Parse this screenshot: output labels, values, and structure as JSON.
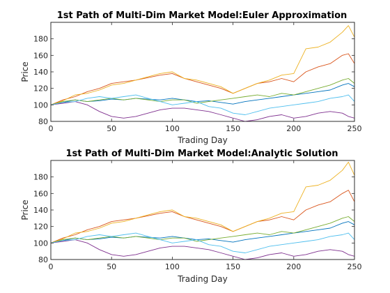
{
  "chart_data": [
    {
      "type": "line",
      "title": "1st Path of Multi-Dim Market Model:Euler Approximation",
      "xlabel": "Trading Day",
      "ylabel": "Price",
      "xlim": [
        0,
        250
      ],
      "ylim": [
        80,
        200
      ],
      "xticks": [
        0,
        50,
        100,
        150,
        200,
        250
      ],
      "yticks": [
        80,
        100,
        120,
        140,
        160,
        180
      ],
      "grid": false,
      "x": [
        0,
        10,
        20,
        30,
        40,
        50,
        60,
        70,
        80,
        90,
        100,
        110,
        120,
        130,
        140,
        150,
        160,
        170,
        180,
        190,
        200,
        210,
        220,
        230,
        240,
        245,
        250
      ],
      "series": [
        {
          "color": "#0072bd",
          "values": [
            100,
            103,
            106,
            104,
            105,
            107,
            106,
            108,
            107,
            106,
            108,
            106,
            104,
            105,
            103,
            101,
            104,
            106,
            108,
            110,
            112,
            114,
            116,
            118,
            124,
            126,
            122
          ]
        },
        {
          "color": "#d95319",
          "values": [
            100,
            106,
            110,
            116,
            120,
            126,
            128,
            130,
            133,
            136,
            138,
            132,
            128,
            124,
            120,
            114,
            120,
            126,
            128,
            132,
            128,
            140,
            146,
            150,
            160,
            162,
            150
          ]
        },
        {
          "color": "#edb120",
          "values": [
            100,
            105,
            112,
            114,
            118,
            124,
            126,
            130,
            134,
            138,
            140,
            132,
            130,
            126,
            122,
            114,
            120,
            126,
            130,
            136,
            138,
            168,
            170,
            176,
            188,
            196,
            182
          ]
        },
        {
          "color": "#7e2f8e",
          "values": [
            100,
            102,
            104,
            100,
            92,
            86,
            84,
            86,
            90,
            94,
            96,
            96,
            94,
            92,
            88,
            84,
            80,
            82,
            86,
            88,
            84,
            86,
            90,
            92,
            90,
            86,
            84
          ]
        },
        {
          "color": "#77ac30",
          "values": [
            100,
            104,
            106,
            104,
            106,
            108,
            106,
            108,
            106,
            104,
            106,
            106,
            102,
            104,
            106,
            108,
            110,
            112,
            110,
            114,
            112,
            116,
            120,
            124,
            130,
            132,
            126
          ]
        },
        {
          "color": "#4dbeee",
          "values": [
            100,
            103,
            104,
            108,
            110,
            108,
            110,
            112,
            108,
            104,
            100,
            102,
            104,
            98,
            96,
            90,
            88,
            92,
            96,
            98,
            100,
            102,
            104,
            108,
            110,
            112,
            104
          ]
        }
      ]
    },
    {
      "type": "line",
      "title": "1st Path of Multi-Dim Market Model:Analytic Solution",
      "xlabel": "Trading Day",
      "ylabel": "Price",
      "xlim": [
        0,
        250
      ],
      "ylim": [
        80,
        200
      ],
      "xticks": [
        0,
        50,
        100,
        150,
        200,
        250
      ],
      "yticks": [
        80,
        100,
        120,
        140,
        160,
        180
      ],
      "grid": false,
      "x": [
        0,
        10,
        20,
        30,
        40,
        50,
        60,
        70,
        80,
        90,
        100,
        110,
        120,
        130,
        140,
        150,
        160,
        170,
        180,
        190,
        200,
        210,
        220,
        230,
        240,
        245,
        250
      ],
      "series": [
        {
          "color": "#0072bd",
          "values": [
            100,
            103,
            106,
            104,
            105,
            107,
            106,
            108,
            107,
            106,
            108,
            106,
            104,
            105,
            103,
            101,
            104,
            106,
            108,
            110,
            112,
            114,
            116,
            118,
            124,
            126,
            122
          ]
        },
        {
          "color": "#d95319",
          "values": [
            100,
            106,
            110,
            116,
            120,
            126,
            128,
            130,
            133,
            136,
            138,
            132,
            128,
            124,
            120,
            114,
            120,
            126,
            128,
            132,
            128,
            140,
            146,
            150,
            160,
            164,
            150
          ]
        },
        {
          "color": "#edb120",
          "values": [
            100,
            105,
            112,
            114,
            118,
            124,
            126,
            130,
            134,
            138,
            140,
            132,
            130,
            126,
            122,
            114,
            120,
            126,
            130,
            136,
            138,
            168,
            170,
            176,
            188,
            198,
            182
          ]
        },
        {
          "color": "#7e2f8e",
          "values": [
            100,
            102,
            104,
            100,
            92,
            86,
            84,
            86,
            90,
            94,
            96,
            96,
            94,
            92,
            88,
            84,
            80,
            82,
            86,
            88,
            84,
            86,
            90,
            92,
            90,
            86,
            84
          ]
        },
        {
          "color": "#77ac30",
          "values": [
            100,
            104,
            106,
            104,
            106,
            108,
            106,
            108,
            106,
            104,
            106,
            106,
            102,
            104,
            106,
            108,
            110,
            112,
            110,
            114,
            112,
            116,
            120,
            124,
            130,
            132,
            126
          ]
        },
        {
          "color": "#4dbeee",
          "values": [
            100,
            103,
            104,
            108,
            110,
            108,
            110,
            112,
            108,
            104,
            100,
            102,
            104,
            98,
            96,
            90,
            88,
            92,
            96,
            98,
            100,
            102,
            104,
            108,
            110,
            112,
            104
          ]
        }
      ]
    }
  ]
}
